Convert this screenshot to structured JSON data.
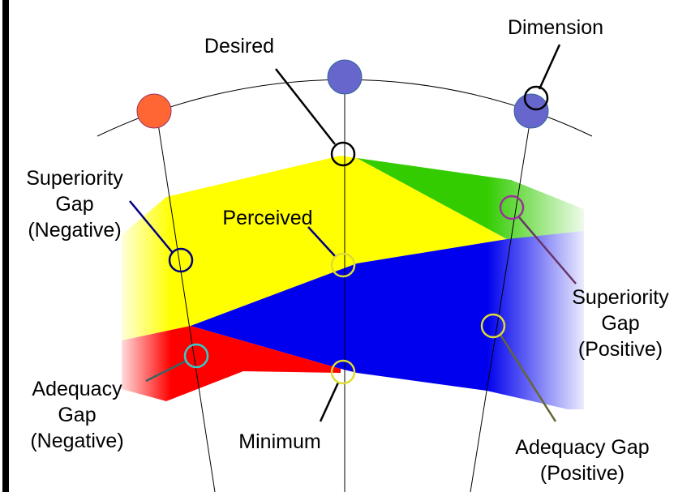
{
  "labels": {
    "desired": "Desired",
    "dimension": "Dimension",
    "perceived": "Perceived",
    "minimum": "Minimum",
    "superiority_negative": [
      "Superiority",
      "Gap",
      "(Negative)"
    ],
    "superiority_positive": [
      "Superiority",
      "Gap",
      "(Positive)"
    ],
    "adequacy_negative": [
      "Adequacy",
      "Gap",
      "(Negative)"
    ],
    "adequacy_positive": [
      "Adequacy Gap",
      "(Positive)"
    ]
  }
}
